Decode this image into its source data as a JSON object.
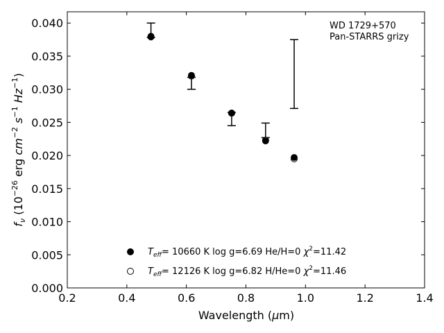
{
  "chart_data": {
    "type": "scatter",
    "xlabel": "Wavelength (μm)",
    "ylabel": "fν (10⁻²⁶ erg cm⁻² s⁻¹ Hz⁻¹)",
    "xlim": [
      0.2,
      1.4
    ],
    "ylim": [
      0.0,
      0.0417
    ],
    "x_ticks": [
      "0.2",
      "0.4",
      "0.6",
      "0.8",
      "1.0",
      "1.2",
      "1.4"
    ],
    "y_ticks": [
      "0.000",
      "0.005",
      "0.010",
      "0.015",
      "0.020",
      "0.025",
      "0.030",
      "0.035",
      "0.040"
    ],
    "grid": false,
    "annotation": [
      "WD 1729+570",
      "Pan-STARRS grizy"
    ],
    "legend_position": "bottom-center",
    "observed": {
      "x": [
        0.481,
        0.617,
        0.752,
        0.866,
        0.962
      ],
      "y": [
        0.0378,
        0.0315,
        0.0255,
        0.0238,
        0.0323
      ],
      "y_upper": [
        0.04,
        0.0318,
        0.0265,
        0.0249,
        0.0375
      ],
      "y_lower": [
        0.0378,
        0.03,
        0.0245,
        0.0227,
        0.0271
      ]
    },
    "series": [
      {
        "name": "Teff= 10660 K  log g=6.69  He/H=0  χ²=11.42",
        "marker": "filled-circle",
        "x": [
          0.481,
          0.617,
          0.752,
          0.866,
          0.962
        ],
        "y": [
          0.038,
          0.0321,
          0.0264,
          0.0222,
          0.0197
        ]
      },
      {
        "name": "Teff= 12126 K  log g=6.82  H/He=0  χ²=11.46",
        "marker": "open-circle",
        "x": [
          0.481,
          0.617,
          0.752,
          0.866,
          0.962
        ],
        "y": [
          0.0379,
          0.032,
          0.0264,
          0.0223,
          0.0195
        ]
      }
    ]
  }
}
